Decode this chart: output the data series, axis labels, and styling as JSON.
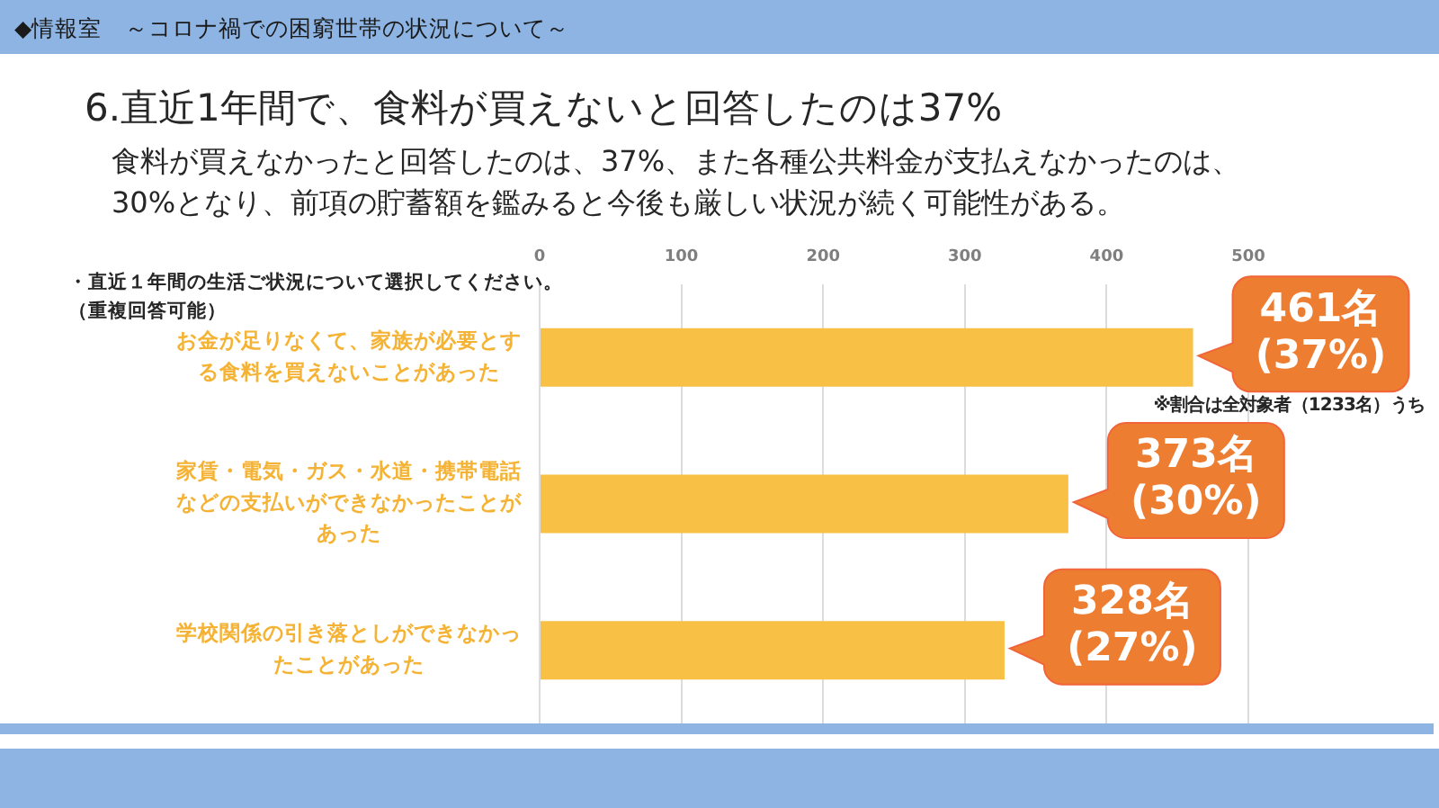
{
  "chart_data": {
    "type": "bar",
    "orientation": "horizontal",
    "title": "6.直近1年間で、食料が買えないと回答したのは37%",
    "subtitle": "食料が買えなかったと回答したのは、37%、また各種公共料金が支払えなかったのは、30%となり、前項の貯蓄額を鑑みると今後も厳しい状況が続く可能性がある。",
    "annotations": [
      "◆情報室　～コロナ禍での困窮世帯の状況について～",
      "・直近１年間の生活ご状況について選択してください。",
      "（重複回答可能）",
      "※割合は全対象者（1233名）うち"
    ],
    "categories": [
      "お金が足りなくて、家族が必要とする食料を買えないことがあった",
      "家賃・電気・ガス・水道・携帯電話などの支払いができなかったことがあった",
      "学校関係の引き落としができなかったことがあった"
    ],
    "values": [
      461,
      373,
      328
    ],
    "color": "#f8c146",
    "value_labels": [
      "461名 (37%)",
      "373名 (30%)",
      "328名 (27%)"
    ],
    "xlim": [
      0,
      500
    ],
    "xticks": [
      0,
      100,
      200,
      300,
      400,
      500
    ],
    "grid": "x"
  }
}
